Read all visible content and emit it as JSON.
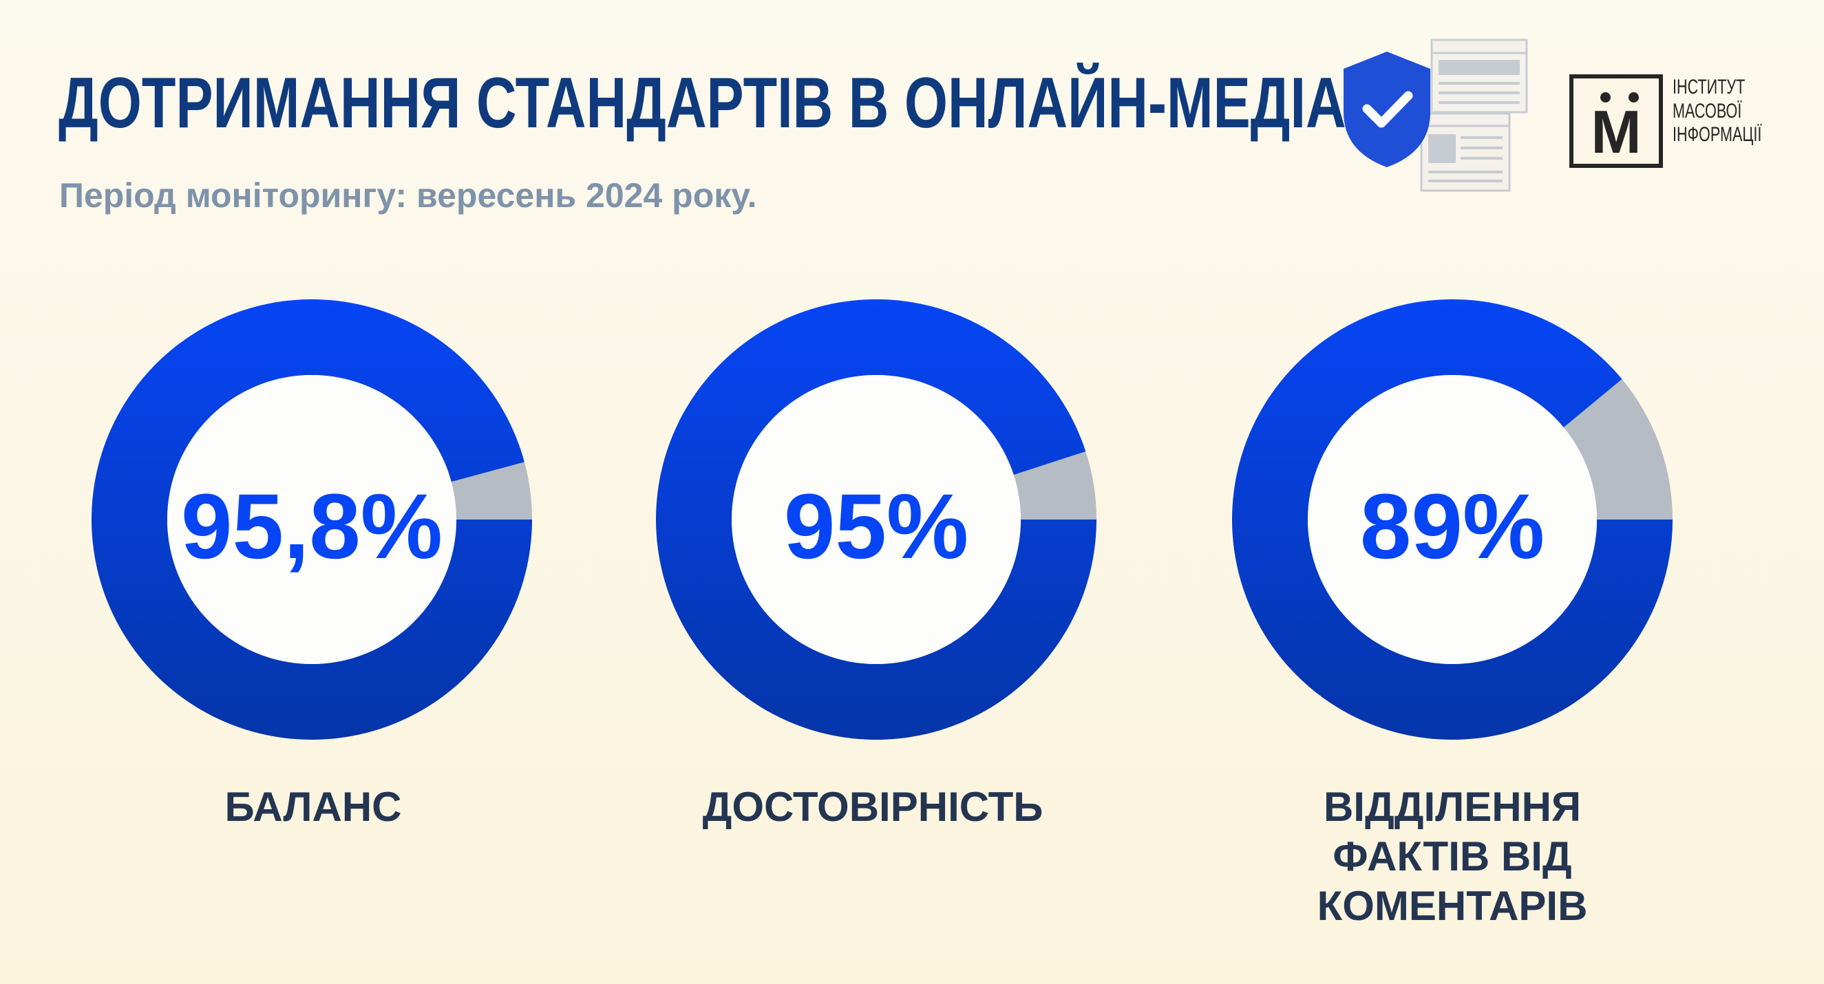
{
  "header": {
    "title": "ДОТРИМАННЯ СТАНДАРТІВ В ОНЛАЙН-МЕДІА",
    "subtitle": "Період моніторингу: вересень 2024 року."
  },
  "logo": {
    "letter": "М",
    "lines": [
      "ІНСТИТУТ",
      "МАСОВОЇ",
      "ІНФОРМАЦІЇ"
    ]
  },
  "icons": [
    "shield-check-icon",
    "webpage-icon"
  ],
  "colors": {
    "primary": "#0645f5",
    "primary_dark": "#0535a8",
    "remainder": "#b5bcc4",
    "title": "#0f3a7d",
    "subtitle": "#7e93ab",
    "label": "#243551"
  },
  "chart_data": [
    {
      "type": "pie",
      "value": 95.8,
      "remainder": 4.2,
      "value_label": "95,8%",
      "label": "БАЛАНС"
    },
    {
      "type": "pie",
      "value": 95,
      "remainder": 5,
      "value_label": "95%",
      "label": "ДОСТОВІРНІСТЬ"
    },
    {
      "type": "pie",
      "value": 89,
      "remainder": 11,
      "value_label": "89%",
      "label": "ВІДДІЛЕННЯ ФАКТІВ ВІД КОМЕНТАРІВ"
    }
  ]
}
